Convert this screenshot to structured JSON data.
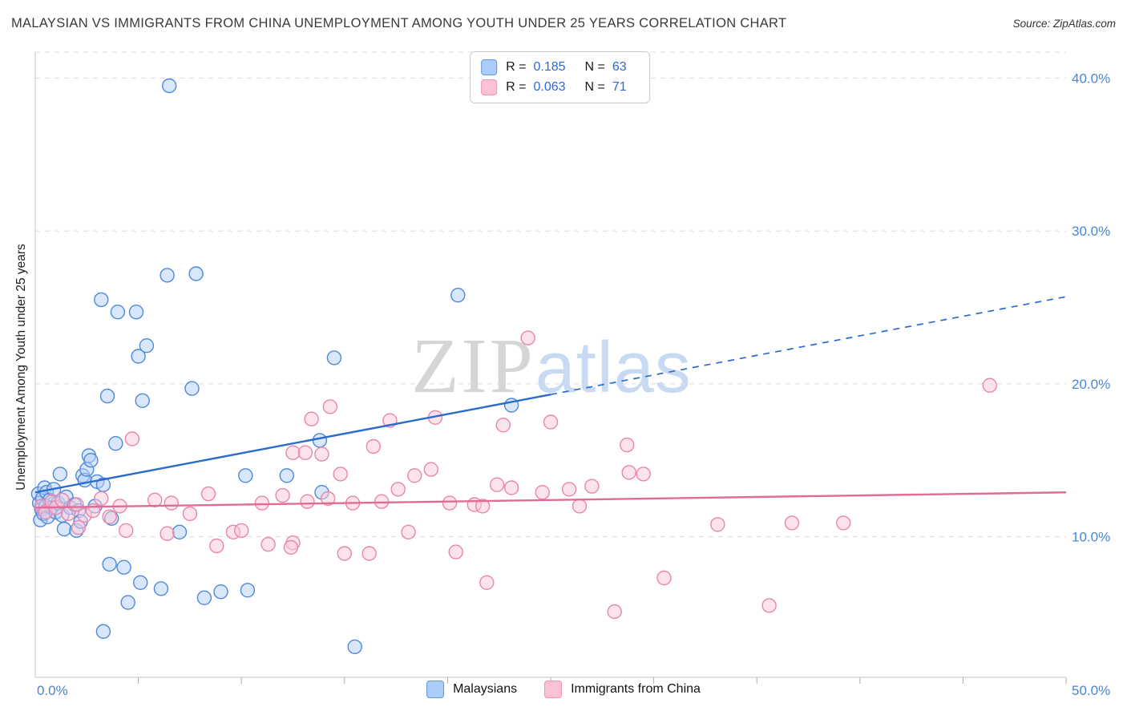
{
  "header": {
    "title": "MALAYSIAN VS IMMIGRANTS FROM CHINA UNEMPLOYMENT AMONG YOUTH UNDER 25 YEARS CORRELATION CHART",
    "source_prefix": "Source:",
    "source": "ZipAtlas.com"
  },
  "watermark": {
    "part1": "ZIP",
    "part2": "atlas"
  },
  "axes": {
    "y_title": "Unemployment Among Youth under 25 years",
    "x_min_label": "0.0%",
    "x_max_label": "50.0%",
    "y_tick_values": [
      10,
      20,
      30,
      40
    ],
    "y_tick_labels": [
      "10.0%",
      "20.0%",
      "30.0%",
      "40.0%"
    ],
    "x_tick_step_pct": 5
  },
  "legend_box": {
    "series": [
      {
        "r_label": "R =",
        "r_value": "0.185",
        "n_label": "N =",
        "n_value": "63"
      },
      {
        "r_label": "R =",
        "r_value": "0.063",
        "n_label": "N =",
        "n_value": "71"
      }
    ]
  },
  "bottom_legend": {
    "items": [
      {
        "label": "Malaysians"
      },
      {
        "label": "Immigrants from China"
      }
    ]
  },
  "chart_data": {
    "type": "scatter",
    "title": "Malaysian vs Immigrants from China Unemployment Among Youth under 25 years Correlation Chart",
    "xlabel": "",
    "ylabel": "Unemployment Among Youth under 25 years",
    "xlim": [
      0,
      50
    ],
    "ylim": [
      0.8,
      41.7
    ],
    "grid": true,
    "legend_position": "top-center",
    "series": [
      {
        "name": "Malaysians",
        "r": 0.185,
        "n": 63,
        "color": "#5088d8",
        "fill": "#b3d0fa",
        "points": [
          [
            0.15,
            12.8
          ],
          [
            0.2,
            12.2
          ],
          [
            0.25,
            11.1
          ],
          [
            0.3,
            11.8
          ],
          [
            0.35,
            12.5
          ],
          [
            0.4,
            11.5
          ],
          [
            0.45,
            13.2
          ],
          [
            0.5,
            12.0
          ],
          [
            0.55,
            12.9
          ],
          [
            0.6,
            11.3
          ],
          [
            0.7,
            12.4
          ],
          [
            0.8,
            11.9
          ],
          [
            0.9,
            13.1
          ],
          [
            1.0,
            11.6
          ],
          [
            1.1,
            12.2
          ],
          [
            1.2,
            14.1
          ],
          [
            1.3,
            11.4
          ],
          [
            1.4,
            10.5
          ],
          [
            1.5,
            12.6
          ],
          [
            1.7,
            11.9
          ],
          [
            1.9,
            12.1
          ],
          [
            2.0,
            10.4
          ],
          [
            2.1,
            11.7
          ],
          [
            2.2,
            11.0
          ],
          [
            2.3,
            14.0
          ],
          [
            2.4,
            13.7
          ],
          [
            2.5,
            14.4
          ],
          [
            2.6,
            15.3
          ],
          [
            2.7,
            15.0
          ],
          [
            2.9,
            12.0
          ],
          [
            3.0,
            13.6
          ],
          [
            3.2,
            25.5
          ],
          [
            3.3,
            13.4
          ],
          [
            3.3,
            3.8
          ],
          [
            3.5,
            19.2
          ],
          [
            3.6,
            8.2
          ],
          [
            3.7,
            11.2
          ],
          [
            3.9,
            16.1
          ],
          [
            4.0,
            24.7
          ],
          [
            4.3,
            8.0
          ],
          [
            4.5,
            5.7
          ],
          [
            4.9,
            24.7
          ],
          [
            5.0,
            21.8
          ],
          [
            5.2,
            18.9
          ],
          [
            5.4,
            22.5
          ],
          [
            5.1,
            7.0
          ],
          [
            6.1,
            6.6
          ],
          [
            6.5,
            39.5
          ],
          [
            6.4,
            27.1
          ],
          [
            7.0,
            10.3
          ],
          [
            7.6,
            19.7
          ],
          [
            7.8,
            27.2
          ],
          [
            8.2,
            6.0
          ],
          [
            9.0,
            6.4
          ],
          [
            10.3,
            6.5
          ],
          [
            10.2,
            14.0
          ],
          [
            12.2,
            14.0
          ],
          [
            13.8,
            16.3
          ],
          [
            14.5,
            21.7
          ],
          [
            15.5,
            2.8
          ],
          [
            20.5,
            25.8
          ],
          [
            23.1,
            18.6
          ],
          [
            13.9,
            12.9
          ]
        ]
      },
      {
        "name": "Immigrants from China",
        "r": 0.063,
        "n": 71,
        "color": "#ea85ab",
        "fill": "#fbc9da",
        "points": [
          [
            0.3,
            12.0
          ],
          [
            0.5,
            11.6
          ],
          [
            0.8,
            12.3
          ],
          [
            1.0,
            11.9
          ],
          [
            1.3,
            12.4
          ],
          [
            1.6,
            11.5
          ],
          [
            2.0,
            12.1
          ],
          [
            2.4,
            11.4
          ],
          [
            2.8,
            11.7
          ],
          [
            3.2,
            12.5
          ],
          [
            3.6,
            11.3
          ],
          [
            4.1,
            12.0
          ],
          [
            2.1,
            10.6
          ],
          [
            4.4,
            10.4
          ],
          [
            4.7,
            16.4
          ],
          [
            5.8,
            12.4
          ],
          [
            6.4,
            10.2
          ],
          [
            6.6,
            12.2
          ],
          [
            7.5,
            11.5
          ],
          [
            8.4,
            12.8
          ],
          [
            8.8,
            9.4
          ],
          [
            9.6,
            10.3
          ],
          [
            10.0,
            10.4
          ],
          [
            11.3,
            9.5
          ],
          [
            12.5,
            9.6
          ],
          [
            12.4,
            9.3
          ],
          [
            15.0,
            8.9
          ],
          [
            16.2,
            8.9
          ],
          [
            18.1,
            10.3
          ],
          [
            12.0,
            12.7
          ],
          [
            11.0,
            12.2
          ],
          [
            13.2,
            12.3
          ],
          [
            14.2,
            12.5
          ],
          [
            15.4,
            12.2
          ],
          [
            16.8,
            12.3
          ],
          [
            17.6,
            13.1
          ],
          [
            12.5,
            15.5
          ],
          [
            13.1,
            15.5
          ],
          [
            13.9,
            15.4
          ],
          [
            16.4,
            15.9
          ],
          [
            13.4,
            17.7
          ],
          [
            14.3,
            18.5
          ],
          [
            17.2,
            17.6
          ],
          [
            19.4,
            17.8
          ],
          [
            22.7,
            17.3
          ],
          [
            23.9,
            23.0
          ],
          [
            20.1,
            12.2
          ],
          [
            21.3,
            12.1
          ],
          [
            21.7,
            12.0
          ],
          [
            18.4,
            14.0
          ],
          [
            19.2,
            14.4
          ],
          [
            14.8,
            14.1
          ],
          [
            22.4,
            13.4
          ],
          [
            23.1,
            13.2
          ],
          [
            24.6,
            12.9
          ],
          [
            25.9,
            13.1
          ],
          [
            27.0,
            13.3
          ],
          [
            26.4,
            12.0
          ],
          [
            28.7,
            16.0
          ],
          [
            28.8,
            14.2
          ],
          [
            29.5,
            14.1
          ],
          [
            21.9,
            7.0
          ],
          [
            28.1,
            5.1
          ],
          [
            30.5,
            7.3
          ],
          [
            35.6,
            5.5
          ],
          [
            33.1,
            10.8
          ],
          [
            36.7,
            10.9
          ],
          [
            39.2,
            10.9
          ],
          [
            46.3,
            19.9
          ],
          [
            25.0,
            17.5
          ],
          [
            20.4,
            9.0
          ]
        ]
      }
    ],
    "trend_lines": [
      {
        "series": "Malaysians",
        "color": "#2a6bcc",
        "solid": [
          [
            0,
            12.9
          ],
          [
            25,
            19.3
          ]
        ],
        "dashed": [
          [
            25,
            19.3
          ],
          [
            50,
            25.7
          ]
        ]
      },
      {
        "series": "Immigrants from China",
        "color": "#e06c96",
        "solid": [
          [
            0,
            11.9
          ],
          [
            50,
            12.9
          ]
        ],
        "dashed": null
      }
    ]
  }
}
